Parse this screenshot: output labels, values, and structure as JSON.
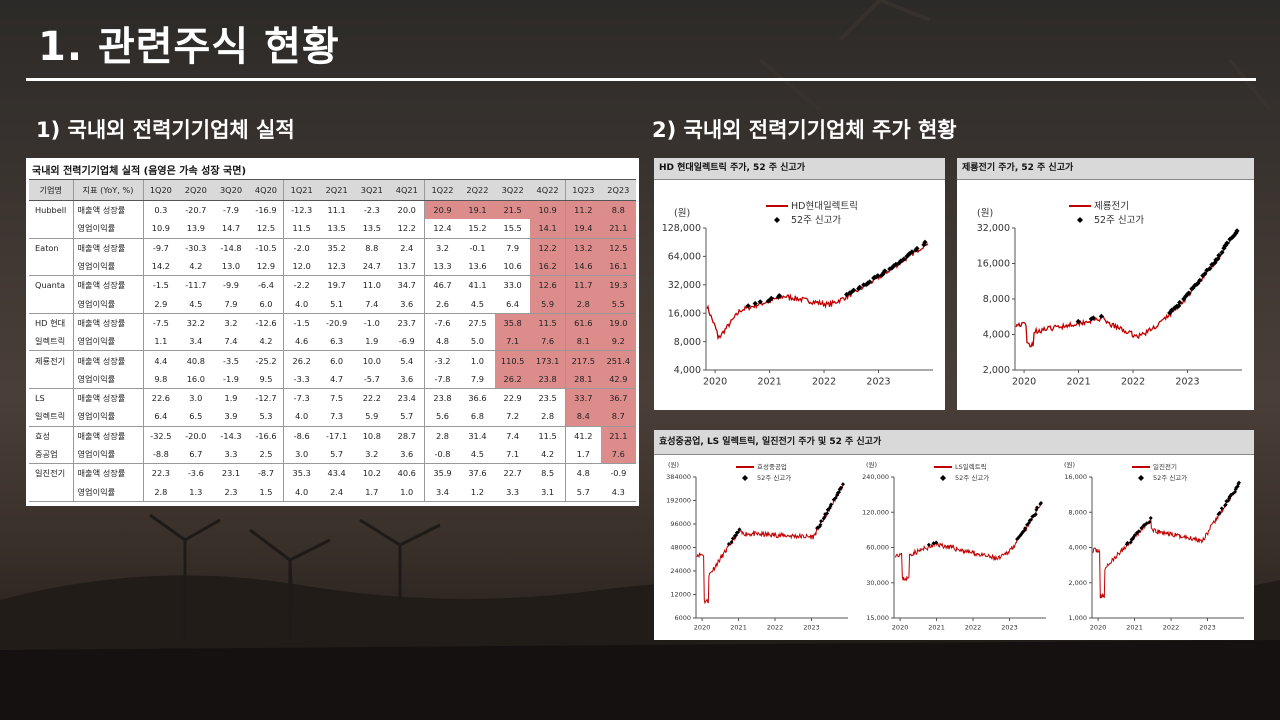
{
  "slide": {
    "title": "1. 관련주식 현황",
    "left_heading": "1)  국내외 전력기기업체 실적",
    "right_heading": "2)  국내외 전력기기업체 주가 현황"
  },
  "colors": {
    "highlight": "#dd8c8c",
    "line": "#c00000",
    "marker": "#000000",
    "header_fill": "#d9d9d9"
  },
  "table": {
    "caption": "국내외 전력기기업체 실적 (음영은 가속 성장 국면)",
    "headers": [
      "기업명",
      "지표 (YoY, %)",
      "1Q20",
      "2Q20",
      "3Q20",
      "4Q20",
      "1Q21",
      "2Q21",
      "3Q21",
      "4Q21",
      "1Q22",
      "2Q22",
      "3Q22",
      "4Q22",
      "1Q23",
      "2Q23"
    ],
    "rows": [
      {
        "company": "Hubbell",
        "metric": "매출액 성장률",
        "values": [
          "0.3",
          "-20.7",
          "-7.9",
          "-16.9",
          "-12.3",
          "11.1",
          "-2.3",
          "20.0",
          "20.9",
          "19.1",
          "21.5",
          "10.9",
          "11.2",
          "8.8"
        ],
        "hl": [
          8,
          9,
          10,
          11,
          12,
          13
        ]
      },
      {
        "company": "",
        "metric": "영업이익률",
        "values": [
          "10.9",
          "13.9",
          "14.7",
          "12.5",
          "11.5",
          "13.5",
          "13.5",
          "12.2",
          "12.4",
          "15.2",
          "15.5",
          "14.1",
          "19.4",
          "21.1"
        ],
        "hl": [
          11,
          12,
          13
        ]
      },
      {
        "company": "Eaton",
        "metric": "매출액 성장률",
        "values": [
          "-9.7",
          "-30.3",
          "-14.8",
          "-10.5",
          "-2.0",
          "35.2",
          "8.8",
          "2.4",
          "3.2",
          "-0.1",
          "7.9",
          "12.2",
          "13.2",
          "12.5"
        ],
        "hl": [
          11,
          12,
          13
        ]
      },
      {
        "company": "",
        "metric": "영업이익률",
        "values": [
          "14.2",
          "4.2",
          "13.0",
          "12.9",
          "12.0",
          "12.3",
          "24.7",
          "13.7",
          "13.3",
          "13.6",
          "10.6",
          "16.2",
          "14.6",
          "16.1"
        ],
        "hl": [
          11,
          12,
          13
        ]
      },
      {
        "company": "Quanta",
        "metric": "매출액 성장률",
        "values": [
          "-1.5",
          "-11.7",
          "-9.9",
          "-6.4",
          "-2.2",
          "19.7",
          "11.0",
          "34.7",
          "46.7",
          "41.1",
          "33.0",
          "12.6",
          "11.7",
          "19.3"
        ],
        "hl": [
          11,
          12,
          13
        ]
      },
      {
        "company": "",
        "metric": "영업이익률",
        "values": [
          "2.9",
          "4.5",
          "7.9",
          "6.0",
          "4.0",
          "5.1",
          "7.4",
          "3.6",
          "2.6",
          "4.5",
          "6.4",
          "5.9",
          "2.8",
          "5.5"
        ],
        "hl": [
          11,
          12,
          13
        ]
      },
      {
        "company": "HD 현대",
        "metric": "매출액 성장률",
        "values": [
          "-7.5",
          "32.2",
          "3.2",
          "-12.6",
          "-1.5",
          "-20.9",
          "-1.0",
          "23.7",
          "-7.6",
          "27.5",
          "35.8",
          "11.5",
          "61.6",
          "19.0"
        ],
        "hl": [
          10,
          11,
          12,
          13
        ]
      },
      {
        "company": "일렉트릭",
        "metric": "영업이익률",
        "values": [
          "1.1",
          "3.4",
          "7.4",
          "4.2",
          "4.6",
          "6.3",
          "1.9",
          "-6.9",
          "4.8",
          "5.0",
          "7.1",
          "7.6",
          "8.1",
          "9.2"
        ],
        "hl": [
          10,
          11,
          12,
          13
        ]
      },
      {
        "company": "제룡전기",
        "metric": "매출액 성장률",
        "values": [
          "4.4",
          "40.8",
          "-3.5",
          "-25.2",
          "26.2",
          "6.0",
          "10.0",
          "5.4",
          "-3.2",
          "1.0",
          "110.5",
          "173.1",
          "217.5",
          "251.4"
        ],
        "hl": [
          10,
          11,
          12,
          13
        ]
      },
      {
        "company": "",
        "metric": "영업이익률",
        "values": [
          "9.8",
          "16.0",
          "-1.9",
          "9.5",
          "-3.3",
          "4.7",
          "-5.7",
          "3.6",
          "-7.8",
          "7.9",
          "26.2",
          "23.8",
          "28.1",
          "42.9"
        ],
        "hl": [
          10,
          11,
          12,
          13
        ]
      },
      {
        "company": "LS",
        "metric": "매출액 성장률",
        "values": [
          "22.6",
          "3.0",
          "1.9",
          "-12.7",
          "-7.3",
          "7.5",
          "22.2",
          "23.4",
          "23.8",
          "36.6",
          "22.9",
          "23.5",
          "33.7",
          "36.7"
        ],
        "hl": [
          12,
          13
        ]
      },
      {
        "company": "일렉트릭",
        "metric": "영업이익률",
        "values": [
          "6.4",
          "6.5",
          "3.9",
          "5.3",
          "4.0",
          "7.3",
          "5.9",
          "5.7",
          "5.6",
          "6.8",
          "7.2",
          "2.8",
          "8.4",
          "8.7"
        ],
        "hl": [
          12,
          13
        ]
      },
      {
        "company": "효성",
        "metric": "매출액 성장률",
        "values": [
          "-32.5",
          "-20.0",
          "-14.3",
          "-16.6",
          "-8.6",
          "-17.1",
          "10.8",
          "28.7",
          "2.8",
          "31.4",
          "7.4",
          "11.5",
          "41.2",
          "21.1"
        ],
        "hl": [
          13
        ]
      },
      {
        "company": "중공업",
        "metric": "영업이익률",
        "values": [
          "-8.8",
          "6.7",
          "3.3",
          "2.5",
          "3.0",
          "5.7",
          "3.2",
          "3.6",
          "-0.8",
          "4.5",
          "7.1",
          "4.2",
          "1.7",
          "7.6"
        ],
        "hl": [
          13
        ]
      },
      {
        "company": "일진전기",
        "metric": "매출액 성장률",
        "values": [
          "22.3",
          "-3.6",
          "23.1",
          "-8.7",
          "35.3",
          "43.4",
          "10.2",
          "40.6",
          "35.9",
          "37.6",
          "22.7",
          "8.5",
          "4.8",
          "-0.9"
        ],
        "hl": []
      },
      {
        "company": "",
        "metric": "영업이익률",
        "values": [
          "2.8",
          "1.3",
          "2.3",
          "1.5",
          "4.0",
          "2.4",
          "1.7",
          "1.0",
          "3.4",
          "1.2",
          "3.3",
          "3.1",
          "5.7",
          "4.3"
        ],
        "hl": []
      }
    ]
  },
  "charts": {
    "hd": {
      "title": "HD 현대일렉트릭 주가, 52 주 신고가",
      "unit": "(원)",
      "legend_line": "HD현대일렉트릭",
      "legend_marker": "52주 신고가",
      "yticks": [
        "4,000",
        "8,000",
        "16,000",
        "32,000",
        "64,000",
        "128,000"
      ],
      "xticks": [
        "2020",
        "2021",
        "2022",
        "2023"
      ]
    },
    "jr": {
      "title": "제룡전기 주가, 52 주 신고가",
      "unit": "(원)",
      "legend_line": "제룡전기",
      "legend_marker": "52주 신고가",
      "yticks": [
        "2,000",
        "4,000",
        "8,000",
        "16,000",
        "32,000"
      ],
      "xticks": [
        "2020",
        "2021",
        "2022",
        "2023"
      ]
    },
    "combo_title": "효성중공업, LS 일렉트릭, 일진전기 주가 및 52 주 신고가",
    "hs": {
      "unit": "(원)",
      "legend_line": "효성중공업",
      "legend_marker": "52주 신고가",
      "yticks": [
        "6000",
        "12000",
        "24000",
        "48000",
        "96000",
        "192000",
        "384000"
      ],
      "xticks": [
        "2020",
        "2021",
        "2022",
        "2023"
      ]
    },
    "ls": {
      "unit": "(원)",
      "legend_line": "LS일렉트릭",
      "legend_marker": "52주 신고가",
      "yticks": [
        "15,000",
        "30,000",
        "60,000",
        "120,000",
        "240,000"
      ],
      "xticks": [
        "2020",
        "2021",
        "2022",
        "2023"
      ]
    },
    "ij": {
      "unit": "(원)",
      "legend_line": "일진전기",
      "legend_marker": "52주 신고가",
      "yticks": [
        "1,000",
        "2,000",
        "4,000",
        "8,000",
        "16,000"
      ],
      "xticks": [
        "2020",
        "2021",
        "2022",
        "2023"
      ]
    }
  }
}
